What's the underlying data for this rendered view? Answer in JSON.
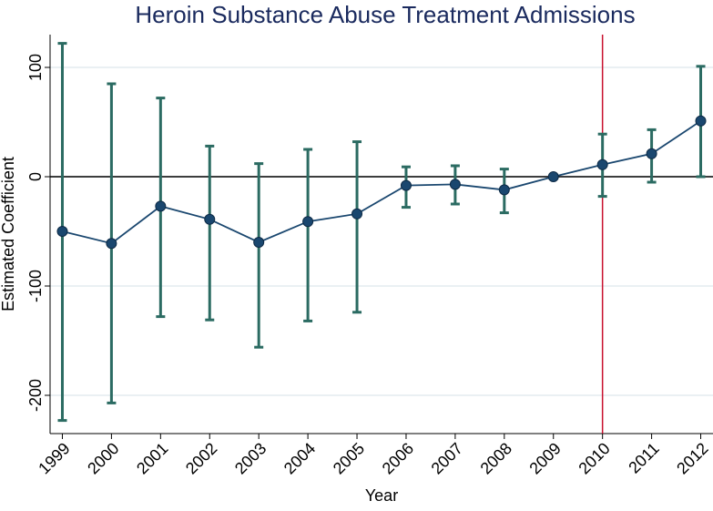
{
  "chart_data": {
    "type": "errorline",
    "title": "Heroin Substance Abuse Treatment Admissions",
    "x_label": "Year",
    "y_label": "Estimated Coefficient",
    "x": [
      1999,
      2000,
      2001,
      2002,
      2003,
      2004,
      2005,
      2006,
      2007,
      2008,
      2009,
      2010,
      2011,
      2012
    ],
    "series": [
      {
        "color": "#1a476f",
        "error_color": "#2b6b62",
        "values": [
          -50,
          -61,
          -27,
          -39,
          -60,
          -41,
          -34,
          -8,
          -7,
          -12,
          0,
          11,
          21,
          51
        ],
        "lower": [
          -223,
          -207,
          -128,
          -131,
          -156,
          -132,
          -124,
          -28,
          -25,
          -33,
          null,
          -18,
          -5,
          0
        ],
        "upper": [
          122,
          85,
          72,
          28,
          12,
          25,
          32,
          9,
          10,
          7,
          null,
          39,
          43,
          101
        ]
      }
    ],
    "xlim": [
      1998.75,
      2012.25
    ],
    "xticks": [
      1999,
      2000,
      2001,
      2002,
      2003,
      2004,
      2005,
      2006,
      2007,
      2008,
      2009,
      2010,
      2011,
      2012
    ],
    "ylim": [
      -235,
      130
    ],
    "yticks": [
      -200,
      -100,
      0,
      100
    ],
    "grid": true,
    "hline": {
      "y": 0,
      "color": "#000000"
    },
    "vline": {
      "x": 2010,
      "color": "#c8102e"
    }
  }
}
